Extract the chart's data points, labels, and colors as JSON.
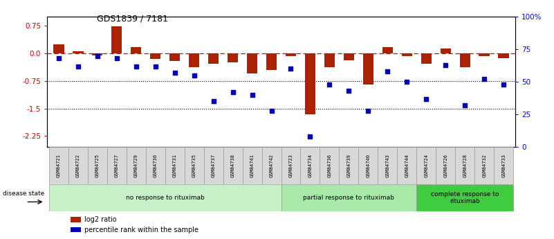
{
  "title": "GDS1839 / 7181",
  "samples": [
    "GSM84721",
    "GSM84722",
    "GSM84725",
    "GSM84727",
    "GSM84729",
    "GSM84730",
    "GSM84731",
    "GSM84735",
    "GSM84737",
    "GSM84738",
    "GSM84741",
    "GSM84742",
    "GSM84723",
    "GSM84734",
    "GSM84736",
    "GSM84739",
    "GSM84740",
    "GSM84743",
    "GSM84744",
    "GSM84724",
    "GSM84726",
    "GSM84728",
    "GSM84732",
    "GSM84733"
  ],
  "log2_ratio": [
    0.25,
    0.05,
    -0.05,
    0.73,
    0.17,
    -0.15,
    -0.2,
    -0.38,
    -0.28,
    -0.25,
    -0.55,
    -0.45,
    -0.07,
    -1.65,
    -0.38,
    -0.18,
    -0.85,
    0.18,
    -0.08,
    -0.28,
    0.13,
    -0.38,
    -0.07,
    -0.13
  ],
  "percentile": [
    68,
    62,
    70,
    68,
    62,
    62,
    57,
    55,
    35,
    42,
    40,
    28,
    60,
    8,
    48,
    43,
    28,
    58,
    50,
    37,
    63,
    32,
    52,
    48
  ],
  "groups": [
    {
      "label": "no response to rituximab",
      "start": 0,
      "end": 12,
      "color": "#c8f0c8"
    },
    {
      "label": "partial response to rituximab",
      "start": 12,
      "end": 19,
      "color": "#a8e8a8"
    },
    {
      "label": "complete response to\nrituximab",
      "start": 19,
      "end": 24,
      "color": "#40cc40"
    }
  ],
  "bar_color": "#aa2200",
  "dot_color": "#0000bb",
  "dashed_line_color": "#cc0000",
  "left_yticks": [
    0.75,
    0.0,
    -0.75,
    -1.5,
    -2.25
  ],
  "right_yticks_vals": [
    100,
    75,
    50,
    25,
    0
  ],
  "right_yticks_labels": [
    "100%",
    "75",
    "50",
    "25",
    "0"
  ],
  "ylim_left": [
    -2.55,
    1.0
  ],
  "ylim_right": [
    0,
    100
  ],
  "legend_items": [
    {
      "color": "#aa2200",
      "label": "log2 ratio"
    },
    {
      "color": "#0000bb",
      "label": "percentile rank within the sample"
    }
  ],
  "disease_state_label": "disease state"
}
